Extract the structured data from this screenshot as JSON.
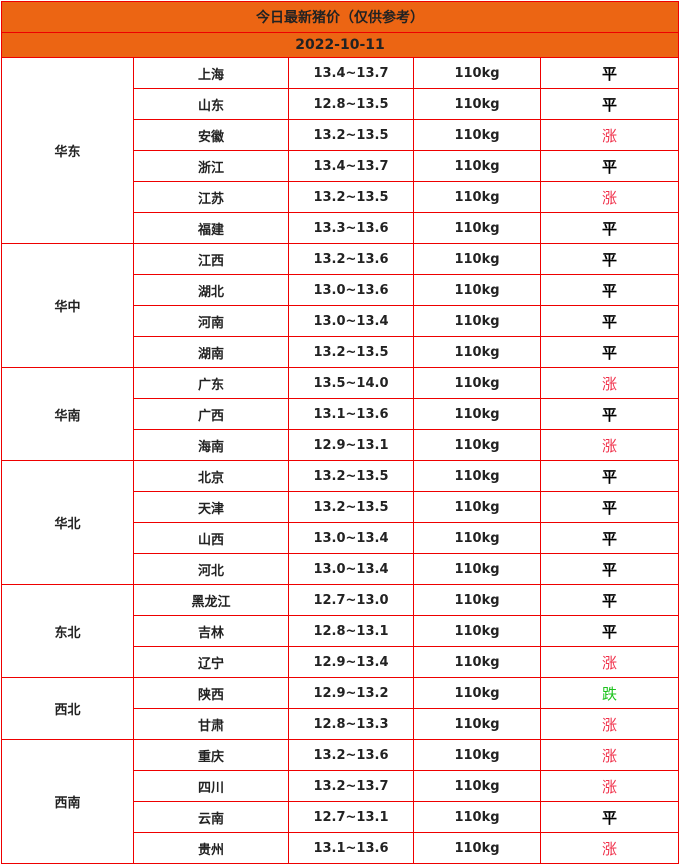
{
  "title": "今日最新猪价（仅供参考）",
  "date": "2022-10-11",
  "colors": {
    "header": "#ec6513",
    "border": "#ee0000",
    "up": "#f0304a",
    "down": "#1cc21c"
  },
  "regions": [
    {
      "name": "华东",
      "rows": [
        [
          "上海",
          "13.4~13.7",
          "110kg",
          "平"
        ],
        [
          "山东",
          "12.8~13.5",
          "110kg",
          "平"
        ],
        [
          "安徽",
          "13.2~13.5",
          "110kg",
          "涨"
        ],
        [
          "浙江",
          "13.4~13.7",
          "110kg",
          "平"
        ],
        [
          "江苏",
          "13.2~13.5",
          "110kg",
          "涨"
        ],
        [
          "福建",
          "13.3~13.6",
          "110kg",
          "平"
        ]
      ]
    },
    {
      "name": "华中",
      "rows": [
        [
          "江西",
          "13.2~13.6",
          "110kg",
          "平"
        ],
        [
          "湖北",
          "13.0~13.6",
          "110kg",
          "平"
        ],
        [
          "河南",
          "13.0~13.4",
          "110kg",
          "平"
        ],
        [
          "湖南",
          "13.2~13.5",
          "110kg",
          "平"
        ]
      ]
    },
    {
      "name": "华南",
      "rows": [
        [
          "广东",
          "13.5~14.0",
          "110kg",
          "涨"
        ],
        [
          "广西",
          "13.1~13.6",
          "110kg",
          "平"
        ],
        [
          "海南",
          "12.9~13.1",
          "110kg",
          "涨"
        ]
      ]
    },
    {
      "name": "华北",
      "rows": [
        [
          "北京",
          "13.2~13.5",
          "110kg",
          "平"
        ],
        [
          "天津",
          "13.2~13.5",
          "110kg",
          "平"
        ],
        [
          "山西",
          "13.0~13.4",
          "110kg",
          "平"
        ],
        [
          "河北",
          "13.0~13.4",
          "110kg",
          "平"
        ]
      ]
    },
    {
      "name": "东北",
      "rows": [
        [
          "黑龙江",
          "12.7~13.0",
          "110kg",
          "平"
        ],
        [
          "吉林",
          "12.8~13.1",
          "110kg",
          "平"
        ],
        [
          "辽宁",
          "12.9~13.4",
          "110kg",
          "涨"
        ]
      ]
    },
    {
      "name": "西北",
      "rows": [
        [
          "陕西",
          "12.9~13.2",
          "110kg",
          "跌"
        ],
        [
          "甘肃",
          "12.8~13.3",
          "110kg",
          "涨"
        ]
      ]
    },
    {
      "name": "西南",
      "rows": [
        [
          "重庆",
          "13.2~13.6",
          "110kg",
          "涨"
        ],
        [
          "四川",
          "13.2~13.7",
          "110kg",
          "涨"
        ],
        [
          "云南",
          "12.7~13.1",
          "110kg",
          "平"
        ],
        [
          "贵州",
          "13.1~13.6",
          "110kg",
          "涨"
        ]
      ]
    }
  ]
}
